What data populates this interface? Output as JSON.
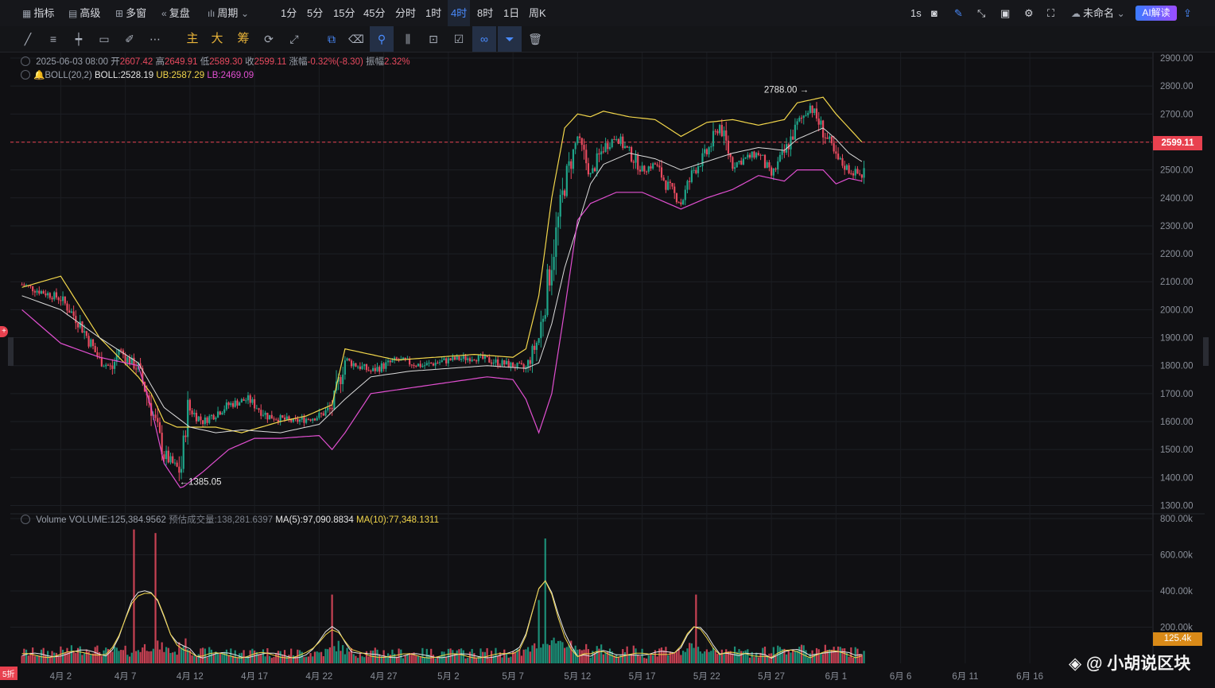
{
  "topbar": {
    "items": [
      {
        "label": "指标",
        "icon": "indicator-icon"
      },
      {
        "label": "高级",
        "icon": "calendar-icon"
      },
      {
        "label": "多窗",
        "icon": "grid-icon"
      },
      {
        "label": "复盘",
        "icon": "rewind-icon"
      },
      {
        "label": "周期",
        "icon": "candle-icon"
      }
    ],
    "intervals": [
      "1分",
      "5分",
      "15分",
      "45分",
      "分时",
      "1时",
      "4时",
      "8时",
      "1日",
      "周K"
    ],
    "active_interval": "4时",
    "right_1s": "1s",
    "layout_name": "未命名",
    "ai_button": "AI解读"
  },
  "toolbar": {
    "cn_labels": [
      "主",
      "大",
      "筹"
    ]
  },
  "candle_info": {
    "date": "2025-06-03 08:00",
    "open_label": "开",
    "open": "2607.42",
    "high_label": "高",
    "high": "2649.91",
    "low_label": "低",
    "low": "2589.30",
    "close_label": "收",
    "close": "2599.11",
    "change_label": "涨幅",
    "change": "-0.32%(-8.30)",
    "amp_label": "振幅",
    "amplitude": "2.32%"
  },
  "boll_info": {
    "name": "BOLL(20,2)",
    "boll": "BOLL:2528.19",
    "ub": "UB:2587.29",
    "lb": "LB:2469.09"
  },
  "volume_info": {
    "name": "Volume",
    "volume": "VOLUME:125,384.9562",
    "estimate": "预估成交量:138,281.6397",
    "ma5": "MA(5):97,090.8834",
    "ma10": "MA(10):77,348.1311"
  },
  "price_tag": "2599.11",
  "volume_tag": "125.4k",
  "high_annotation": "2788.00 →",
  "low_annotation": "←1385.05",
  "watermark": "@ 小胡说区块",
  "badge": "5折",
  "colors": {
    "up": "#e84a5f",
    "down": "#1fa58a",
    "ub": "#f2d64b",
    "lb": "#e04fd0",
    "mid": "#dcdcdc",
    "ma10": "#f2d64b"
  },
  "chart_data": {
    "type": "candlestick",
    "interval": "4h",
    "price_axis": {
      "ticks": [
        1300,
        1400,
        1500,
        1600,
        1700,
        1800,
        1900,
        2000,
        2100,
        2200,
        2300,
        2400,
        2500,
        2600,
        2700,
        2800,
        2900
      ],
      "labels": [
        "1300.00",
        "1400.00",
        "1500.00",
        "1600.00",
        "1700.00",
        "1800.00",
        "1900.00",
        "2000.00",
        "2100.00",
        "2200.00",
        "2300.00",
        "2400.00",
        "2500.00",
        "2600.00",
        "2700.00",
        "2800.00",
        "2900.00"
      ],
      "range": [
        1270,
        2920
      ]
    },
    "volume_axis": {
      "ticks": [
        200000,
        400000,
        600000,
        800000
      ],
      "labels": [
        "200.00k",
        "400.00k",
        "600.00k",
        "800.00k"
      ],
      "range": [
        0,
        800000
      ]
    },
    "x_axis": {
      "labels": [
        "4月 2",
        "4月 7",
        "4月 12",
        "4月 17",
        "4月 22",
        "4月 27",
        "5月 2",
        "5月 7",
        "5月 12",
        "5月 17",
        "5月 22",
        "5月 27",
        "6月 1",
        "6月 6",
        "6月 11",
        "6月 16"
      ],
      "day_index": [
        3,
        8,
        13,
        18,
        23,
        28,
        33,
        38,
        43,
        48,
        53,
        58,
        63,
        68,
        73,
        78
      ]
    },
    "start_day_index": -0.9,
    "current_price": 2599.11,
    "price_path": [
      [
        0,
        2090
      ],
      [
        3,
        2040
      ],
      [
        4.5,
        1950
      ],
      [
        6,
        1820
      ],
      [
        7,
        1790
      ],
      [
        7.5,
        1860
      ],
      [
        8,
        1830
      ],
      [
        9,
        1790
      ],
      [
        10,
        1650
      ],
      [
        11,
        1480
      ],
      [
        12.3,
        1420
      ],
      [
        12.8,
        1650
      ],
      [
        14,
        1600
      ],
      [
        16,
        1660
      ],
      [
        17.5,
        1680
      ],
      [
        19,
        1620
      ],
      [
        21,
        1600
      ],
      [
        23,
        1620
      ],
      [
        24,
        1650
      ],
      [
        25,
        1820
      ],
      [
        27,
        1780
      ],
      [
        29,
        1820
      ],
      [
        31,
        1800
      ],
      [
        33,
        1820
      ],
      [
        35,
        1830
      ],
      [
        37,
        1810
      ],
      [
        39,
        1790
      ],
      [
        40,
        1900
      ],
      [
        41,
        2180
      ],
      [
        42,
        2450
      ],
      [
        43,
        2620
      ],
      [
        44,
        2480
      ],
      [
        45,
        2580
      ],
      [
        46,
        2620
      ],
      [
        47,
        2560
      ],
      [
        48,
        2500
      ],
      [
        49,
        2520
      ],
      [
        50,
        2440
      ],
      [
        51,
        2380
      ],
      [
        52,
        2500
      ],
      [
        53,
        2560
      ],
      [
        54,
        2660
      ],
      [
        55,
        2520
      ],
      [
        56,
        2540
      ],
      [
        57,
        2560
      ],
      [
        58,
        2480
      ],
      [
        59,
        2560
      ],
      [
        60,
        2660
      ],
      [
        61,
        2730
      ],
      [
        62,
        2640
      ],
      [
        63,
        2540
      ],
      [
        64,
        2500
      ],
      [
        65,
        2480
      ],
      [
        66,
        2600
      ]
    ],
    "boll_upper_path": [
      [
        0,
        2080
      ],
      [
        3,
        2120
      ],
      [
        6,
        1900
      ],
      [
        9,
        1760
      ],
      [
        10,
        1700
      ],
      [
        11,
        1600
      ],
      [
        12,
        1580
      ],
      [
        15,
        1580
      ],
      [
        17,
        1560
      ],
      [
        20,
        1600
      ],
      [
        22,
        1620
      ],
      [
        24,
        1660
      ],
      [
        25,
        1860
      ],
      [
        27,
        1840
      ],
      [
        29,
        1820
      ],
      [
        32,
        1830
      ],
      [
        35,
        1840
      ],
      [
        38,
        1830
      ],
      [
        39,
        1860
      ],
      [
        40,
        2050
      ],
      [
        41,
        2400
      ],
      [
        42,
        2650
      ],
      [
        43,
        2700
      ],
      [
        44,
        2690
      ],
      [
        45,
        2710
      ],
      [
        47,
        2690
      ],
      [
        49,
        2680
      ],
      [
        51,
        2620
      ],
      [
        53,
        2670
      ],
      [
        55,
        2680
      ],
      [
        57,
        2660
      ],
      [
        59,
        2680
      ],
      [
        60,
        2740
      ],
      [
        62,
        2760
      ],
      [
        63,
        2700
      ],
      [
        64,
        2650
      ],
      [
        65,
        2600
      ]
    ],
    "boll_mid_path": [
      [
        0,
        2050
      ],
      [
        3,
        2000
      ],
      [
        6,
        1900
      ],
      [
        9,
        1810
      ],
      [
        11,
        1650
      ],
      [
        13,
        1580
      ],
      [
        15,
        1560
      ],
      [
        17,
        1570
      ],
      [
        20,
        1560
      ],
      [
        23,
        1590
      ],
      [
        25,
        1680
      ],
      [
        27,
        1760
      ],
      [
        30,
        1780
      ],
      [
        33,
        1790
      ],
      [
        36,
        1800
      ],
      [
        39,
        1790
      ],
      [
        40,
        1810
      ],
      [
        41,
        1950
      ],
      [
        42,
        2150
      ],
      [
        43,
        2300
      ],
      [
        44,
        2450
      ],
      [
        45,
        2520
      ],
      [
        47,
        2560
      ],
      [
        49,
        2540
      ],
      [
        51,
        2500
      ],
      [
        53,
        2530
      ],
      [
        55,
        2560
      ],
      [
        57,
        2580
      ],
      [
        59,
        2570
      ],
      [
        60,
        2610
      ],
      [
        62,
        2650
      ],
      [
        63,
        2610
      ],
      [
        64,
        2560
      ],
      [
        65,
        2530
      ]
    ],
    "boll_lower_path": [
      [
        0,
        2000
      ],
      [
        3,
        1880
      ],
      [
        6,
        1830
      ],
      [
        9,
        1800
      ],
      [
        10,
        1650
      ],
      [
        11,
        1450
      ],
      [
        12.3,
        1360
      ],
      [
        14,
        1420
      ],
      [
        16,
        1500
      ],
      [
        18,
        1540
      ],
      [
        20,
        1540
      ],
      [
        23,
        1550
      ],
      [
        24,
        1500
      ],
      [
        25,
        1560
      ],
      [
        27,
        1700
      ],
      [
        30,
        1720
      ],
      [
        33,
        1740
      ],
      [
        36,
        1760
      ],
      [
        38,
        1750
      ],
      [
        39,
        1680
      ],
      [
        40,
        1560
      ],
      [
        41,
        1700
      ],
      [
        42,
        2000
      ],
      [
        43,
        2320
      ],
      [
        44,
        2380
      ],
      [
        46,
        2420
      ],
      [
        48,
        2420
      ],
      [
        50,
        2380
      ],
      [
        51,
        2360
      ],
      [
        53,
        2400
      ],
      [
        55,
        2430
      ],
      [
        57,
        2480
      ],
      [
        59,
        2460
      ],
      [
        60,
        2500
      ],
      [
        62,
        2500
      ],
      [
        63,
        2450
      ],
      [
        64,
        2470
      ],
      [
        65,
        2460
      ]
    ],
    "volume_spikes": [
      [
        8.7,
        740000
      ],
      [
        10.3,
        720000
      ],
      [
        40.5,
        690000
      ],
      [
        52.2,
        380000
      ],
      [
        24,
        380000
      ],
      [
        40,
        350000
      ]
    ]
  }
}
